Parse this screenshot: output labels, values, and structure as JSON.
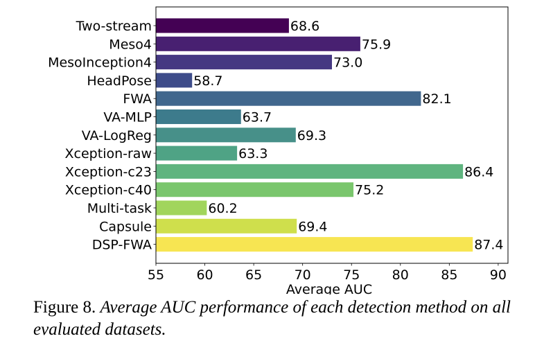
{
  "chart_data": {
    "type": "bar",
    "orientation": "horizontal",
    "title": "",
    "xlabel": "Average AUC",
    "ylabel": "",
    "xlim": [
      55,
      91
    ],
    "xticks": [
      55,
      60,
      65,
      70,
      75,
      80,
      85,
      90
    ],
    "grid": false,
    "legend": "none",
    "colormap": "viridis",
    "categories": [
      "Two-stream",
      "Meso4",
      "MesoInception4",
      "HeadPose",
      "FWA",
      "VA-MLP",
      "VA-LogReg",
      "Xception-raw",
      "Xception-c23",
      "Xception-c40",
      "Multi-task",
      "Capsule",
      "DSP-FWA"
    ],
    "values": [
      68.6,
      75.9,
      73.0,
      58.7,
      82.1,
      63.7,
      69.3,
      63.3,
      86.4,
      75.2,
      60.2,
      69.4,
      87.4
    ],
    "value_labels": [
      "68.6",
      "75.9",
      "73.0",
      "58.7",
      "82.1",
      "63.7",
      "69.3",
      "63.3",
      "86.4",
      "75.2",
      "60.2",
      "69.4",
      "87.4"
    ],
    "colors": [
      "#440154",
      "#482071",
      "#453882",
      "#3e4c8a",
      "#41678d",
      "#3d7b8c",
      "#479089",
      "#4fa385",
      "#5fb47f",
      "#7ac66d",
      "#a1d55c",
      "#cfdf4c",
      "#f7e552"
    ]
  },
  "caption": {
    "label": "Figure 8.",
    "text": "Average AUC performance of each detection method on all evaluated datasets."
  }
}
